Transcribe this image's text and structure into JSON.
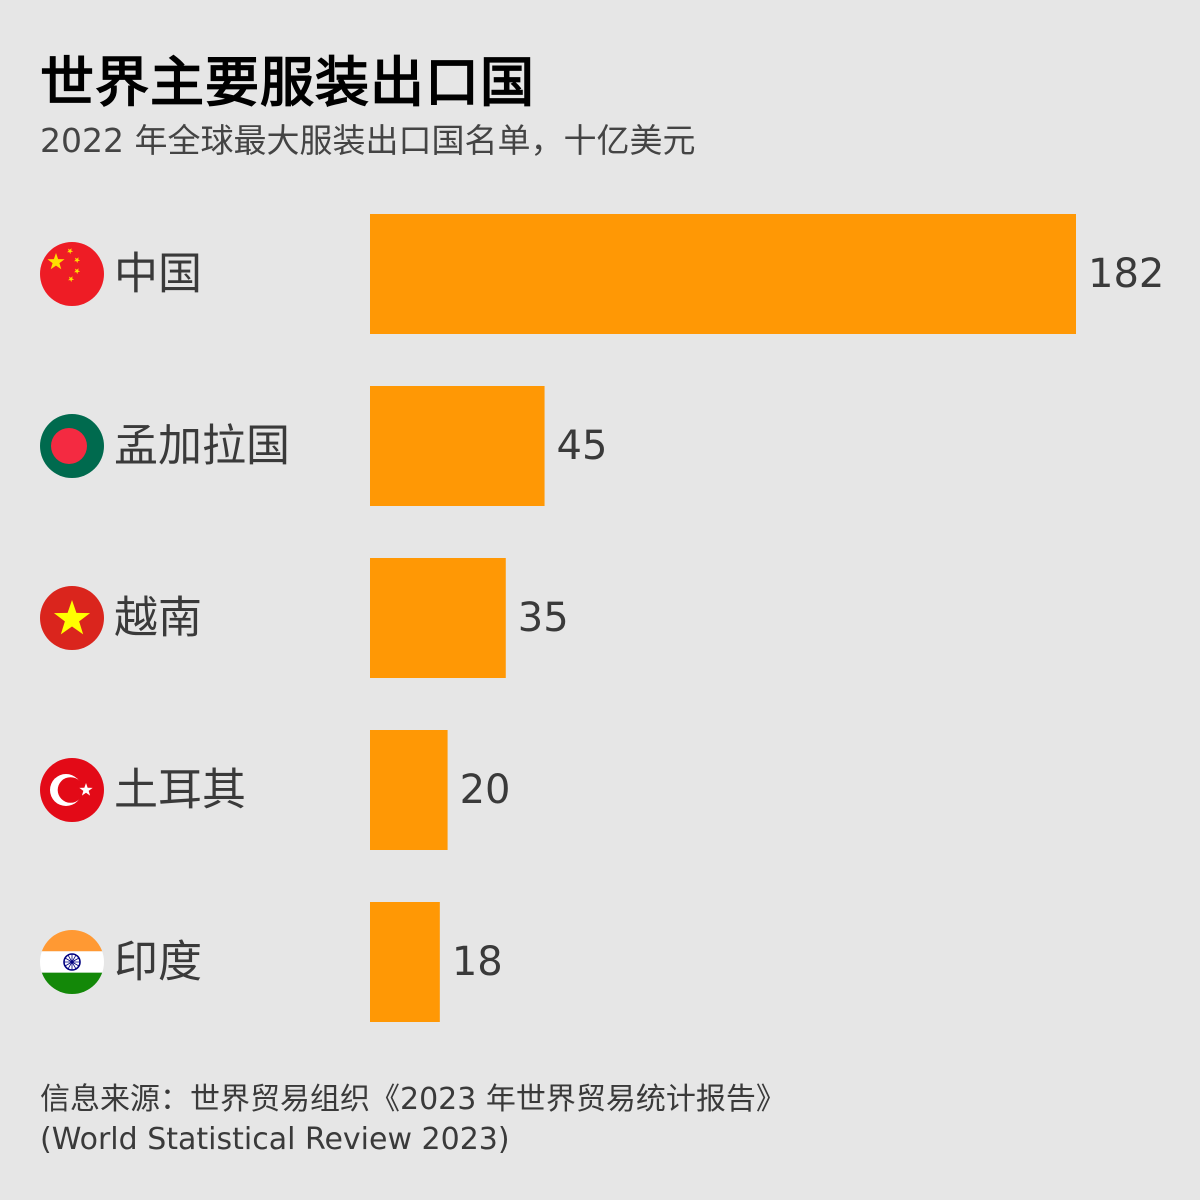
{
  "title": "世界主要服装出口国",
  "subtitle": "2022 年全球最大服装出口国名单，十亿美元",
  "source": {
    "line1": "信息来源：世界贸易组织《2023 年世界贸易统计报告》",
    "line2": "(World Statistical Review 2023)"
  },
  "colors": {
    "bar": "#ff9805",
    "background": "#e6e6e6"
  },
  "chart_data": {
    "type": "bar",
    "orientation": "horizontal",
    "categories": [
      "中国",
      "孟加拉国",
      "越南",
      "土耳其",
      "印度"
    ],
    "flags": [
      "china-flag-icon",
      "bangladesh-flag-icon",
      "vietnam-flag-icon",
      "turkey-flag-icon",
      "india-flag-icon"
    ],
    "values": [
      182,
      45,
      35,
      20,
      18
    ],
    "title": "世界主要服装出口国",
    "subtitle": "2022 年全球最大服装出口国名单，十亿美元",
    "xlim": [
      0,
      182
    ],
    "data_labels": true,
    "grid": false
  }
}
